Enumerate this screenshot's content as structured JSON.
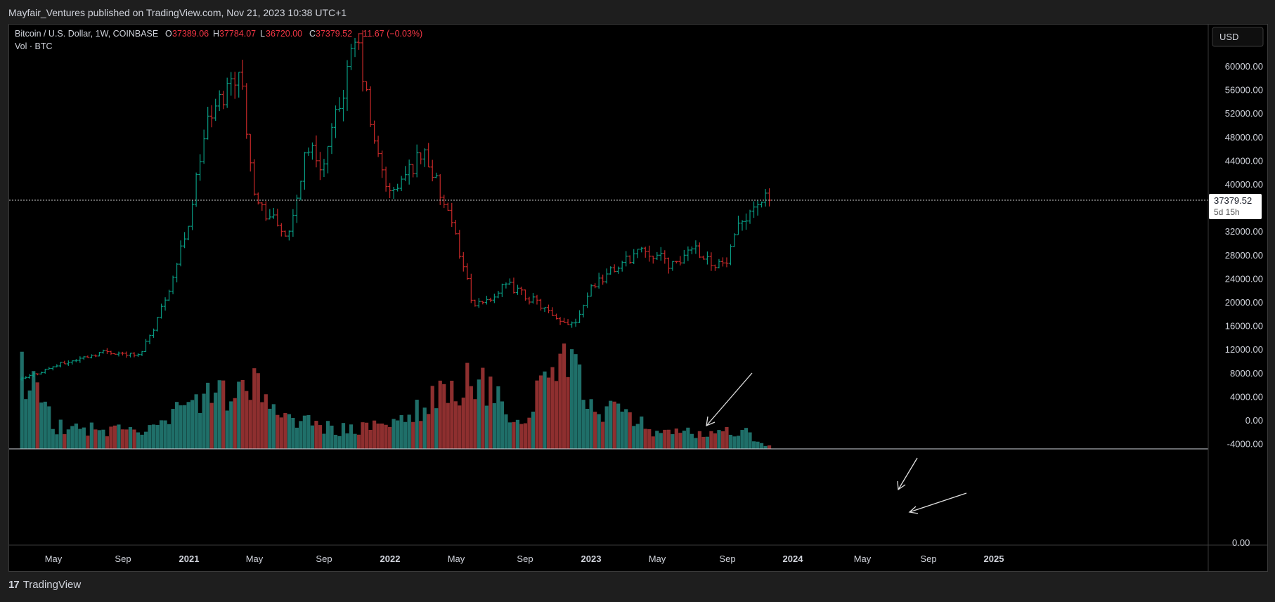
{
  "header": {
    "published_line": "Mayfair_Ventures published on TradingView.com, Nov 21, 2023 10:38 UTC+1"
  },
  "legend": {
    "symbol": "Bitcoin / U.S. Dollar, 1W, COINBASE",
    "o_label": "O",
    "o_value": "37389.06",
    "h_label": "H",
    "h_value": "37784.07",
    "l_label": "L",
    "l_value": "36720.00",
    "c_label": "C",
    "c_value": "37379.52",
    "change": "−11.67 (−0.03%)",
    "volume_label": "Vol · BTC"
  },
  "currency_button": "USD",
  "price_badge": {
    "price": "37379.52",
    "countdown": "5d 15h"
  },
  "footer": {
    "logo_text": "TradingView",
    "logo_mark": "17"
  },
  "colors": {
    "up": "#26a69a",
    "down": "#ef5350",
    "candle_up": "#089981",
    "candle_down": "#c62828",
    "vol_up": "#1f6f69",
    "vol_down": "#8e2f2f",
    "background": "#000000",
    "text": "#d1d4dc",
    "legend_down": "#f23645"
  },
  "chart_data": {
    "type": "candlestick",
    "title": "Bitcoin / U.S. Dollar, 1W, COINBASE",
    "price_axis_ticks": [
      "60000.00",
      "56000.00",
      "52000.00",
      "48000.00",
      "44000.00",
      "40000.00",
      "32000.00",
      "28000.00",
      "24000.00",
      "20000.00",
      "16000.00",
      "12000.00",
      "8000.00",
      "4000.00",
      "0.00",
      "-4000.00"
    ],
    "volume_axis_ticks": [
      "0.00"
    ],
    "x_axis_ticks": [
      "May",
      "Sep",
      "2021",
      "May",
      "Sep",
      "2022",
      "May",
      "Sep",
      "2023",
      "May",
      "Sep",
      "2024",
      "May",
      "Sep",
      "2025"
    ],
    "x_axis_bold": [
      "2021",
      "2022",
      "2023",
      "2024",
      "2025"
    ],
    "last_price": 37379.52,
    "ylim": [
      -4000,
      62000
    ],
    "grid": false,
    "series": [
      {
        "name": "Bitcoin / U.S. Dollar",
        "key_closes": [
          [
            "2020-03",
            7000
          ],
          [
            "2020-05",
            9300
          ],
          [
            "2020-08",
            11800
          ],
          [
            "2020-10",
            11000
          ],
          [
            "2020-11",
            16500
          ],
          [
            "2020-12",
            24000
          ],
          [
            "2021-01",
            34000
          ],
          [
            "2021-02",
            50000
          ],
          [
            "2021-04",
            60000
          ],
          [
            "2021-05",
            37000
          ],
          [
            "2021-06",
            34000
          ],
          [
            "2021-07",
            31000
          ],
          [
            "2021-08",
            47000
          ],
          [
            "2021-09",
            43000
          ],
          [
            "2021-11",
            65000
          ],
          [
            "2021-12",
            47000
          ],
          [
            "2022-01",
            38000
          ],
          [
            "2022-03",
            46000
          ],
          [
            "2022-05",
            30000
          ],
          [
            "2022-06",
            19000
          ],
          [
            "2022-08",
            23000
          ],
          [
            "2022-10",
            19500
          ],
          [
            "2022-11",
            16500
          ],
          [
            "2022-12",
            16800
          ],
          [
            "2023-01",
            23000
          ],
          [
            "2023-03",
            27000
          ],
          [
            "2023-04",
            29500
          ],
          [
            "2023-06",
            26000
          ],
          [
            "2023-07",
            30000
          ],
          [
            "2023-08",
            27000
          ],
          [
            "2023-09",
            26500
          ],
          [
            "2023-10",
            34500
          ],
          [
            "2023-11",
            37379.52
          ]
        ]
      },
      {
        "name": "Vol · BTC",
        "key_values": [
          [
            "2020-03",
            11000
          ],
          [
            "2020-05",
            3000
          ],
          [
            "2020-08",
            2500
          ],
          [
            "2020-11",
            2500
          ],
          [
            "2021-01",
            6000
          ],
          [
            "2021-05",
            8000
          ],
          [
            "2021-07",
            4000
          ],
          [
            "2021-10",
            2500
          ],
          [
            "2022-01",
            3000
          ],
          [
            "2022-05",
            8500
          ],
          [
            "2022-06",
            9000
          ],
          [
            "2022-09",
            3500
          ],
          [
            "2022-11",
            13000
          ],
          [
            "2023-01",
            6000
          ],
          [
            "2023-03",
            4500
          ],
          [
            "2023-05",
            2000
          ],
          [
            "2023-08",
            2200
          ],
          [
            "2023-10",
            2500
          ],
          [
            "2023-11",
            600
          ]
        ]
      }
    ],
    "annotations": [
      "arrow toward 2023 volume spike",
      "arrow toward recent volume bars",
      "arrow toward current volume bar"
    ]
  }
}
